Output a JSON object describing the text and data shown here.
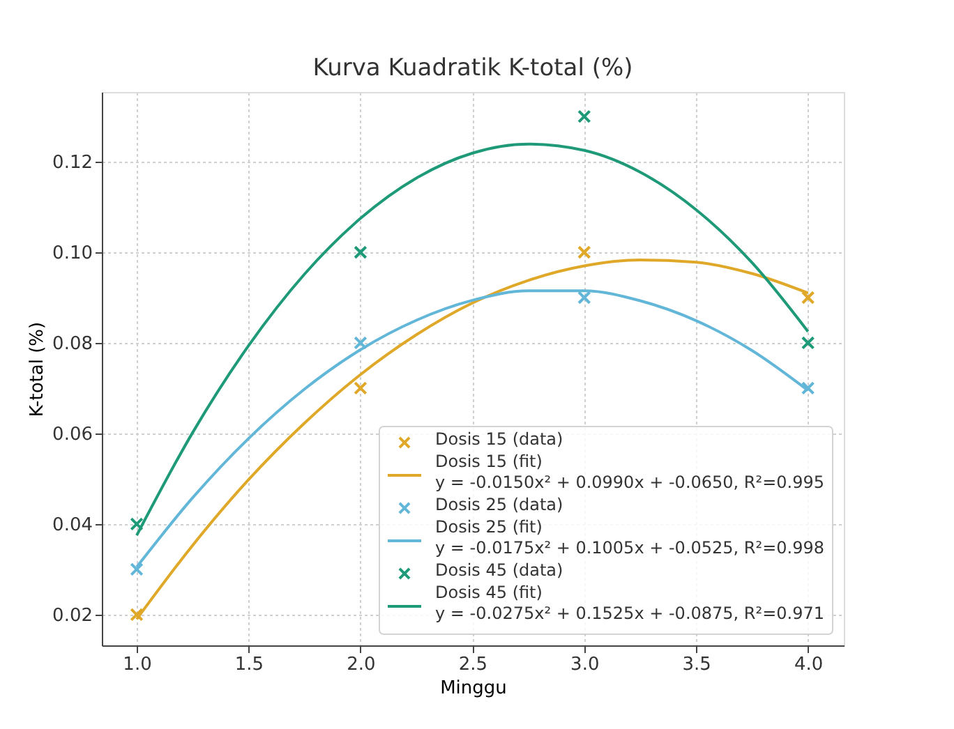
{
  "chart_data": {
    "type": "scatter",
    "title": "Kurva Kuadratik K-total (%)",
    "xlabel": "Minggu",
    "ylabel": "K-total (%)",
    "x": [
      1,
      2,
      3,
      4
    ],
    "series": [
      {
        "name": "Dosis 15 (data)",
        "color": "#e0a828",
        "marker": "cross",
        "values": [
          0.02,
          0.07,
          0.1,
          0.09
        ]
      },
      {
        "name": "Dosis 15 (fit)\ny = -0.0150x² + 0.0990x + -0.0650, R²=0.995",
        "color": "#e0a828",
        "type": "line",
        "x": [
          1,
          1.25,
          1.5,
          1.75,
          2,
          2.25,
          2.5,
          2.75,
          3,
          3.25,
          3.5,
          3.75,
          4
        ],
        "values": [
          0.019,
          0.0353,
          0.0498,
          0.0623,
          0.073,
          0.0818,
          0.0888,
          0.0938,
          0.097,
          0.0983,
          0.0978,
          0.0953,
          0.091
        ]
      },
      {
        "name": "Dosis 25 (data)",
        "color": "#62b6d8",
        "marker": "cross",
        "values": [
          0.03,
          0.08,
          0.09,
          0.07
        ]
      },
      {
        "name": "Dosis 25 (fit)\ny = -0.0175x² + 0.1005x + -0.0525, R²=0.998",
        "color": "#62b6d8",
        "type": "line",
        "x": [
          1,
          1.25,
          1.5,
          1.75,
          2,
          2.25,
          2.5,
          2.75,
          3,
          3.25,
          3.5,
          3.75,
          4
        ],
        "values": [
          0.0305,
          0.0458,
          0.0589,
          0.0698,
          0.0785,
          0.085,
          0.0894,
          0.0915,
          0.0915,
          0.0893,
          0.0849,
          0.0783,
          0.0695
        ]
      },
      {
        "name": "Dosis 45 (data)",
        "color": "#1f9a78",
        "marker": "cross",
        "values": [
          0.04,
          0.1,
          0.13,
          0.08
        ]
      },
      {
        "name": "Dosis 45 (fit)\ny = -0.0275x² + 0.1525x + -0.0875, R²=0.971",
        "color": "#1f9a78",
        "type": "line",
        "x": [
          1,
          1.25,
          1.5,
          1.75,
          2,
          2.25,
          2.5,
          2.75,
          3,
          3.25,
          3.5,
          3.75,
          4
        ],
        "values": [
          0.0375,
          0.0602,
          0.0794,
          0.0952,
          0.1075,
          0.1164,
          0.1219,
          0.1239,
          0.1225,
          0.1177,
          0.1094,
          0.0977,
          0.0825
        ]
      }
    ],
    "xlim": [
      0.844,
      4.16
    ],
    "xticks": [
      {
        "value": 1,
        "label": "1.0"
      },
      1.5,
      {
        "value": 2,
        "label": "2.0"
      },
      2.5,
      {
        "value": 3,
        "label": "3.0"
      },
      3.5,
      {
        "value": 4,
        "label": "4.0"
      }
    ],
    "ylim": [
      0.0132,
      0.1354
    ],
    "yticks": [
      {
        "value": 0.02,
        "label": "0.02"
      },
      {
        "value": 0.04,
        "label": "0.04"
      },
      {
        "value": 0.06,
        "label": "0.06"
      },
      {
        "value": 0.08,
        "label": "0.08"
      },
      {
        "value": 0.1,
        "label": "0.10"
      },
      {
        "value": 0.12,
        "label": "0.12"
      }
    ],
    "grid": true,
    "legend": "bottom right",
    "line_style": "solid"
  }
}
